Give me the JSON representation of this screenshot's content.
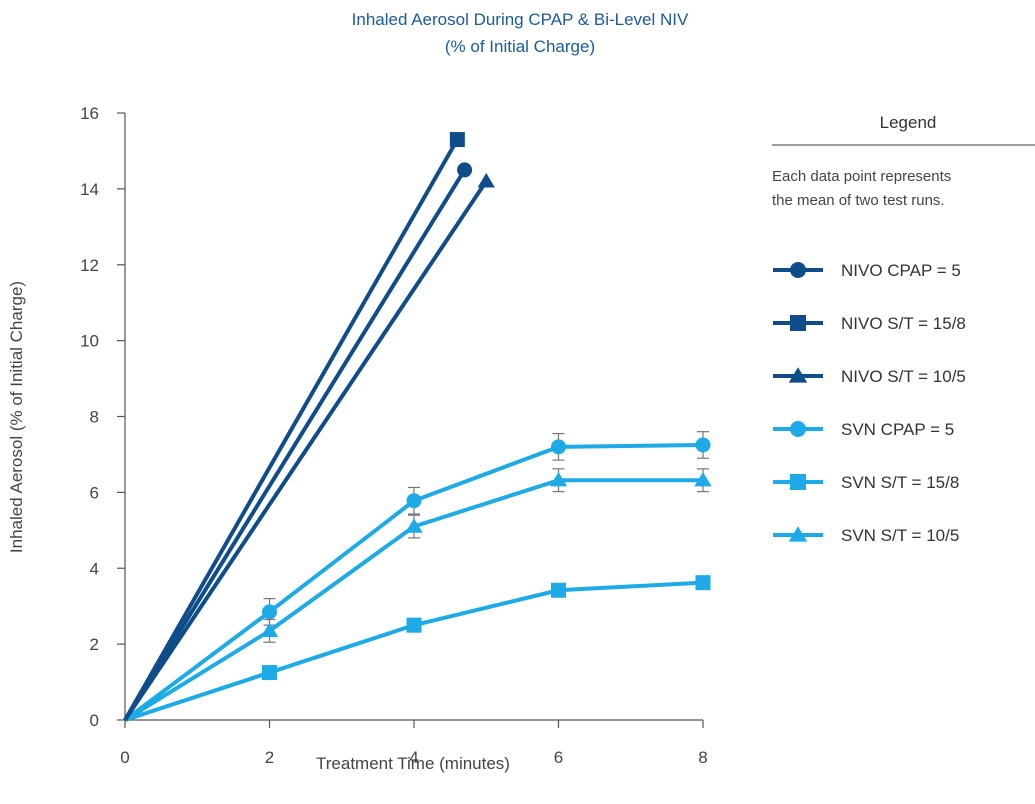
{
  "chart_data": {
    "type": "line",
    "title": "Inhaled Aerosol During CPAP & Bi-Level NIV",
    "subtitle": "(% of Initial Charge)",
    "xlabel": "Treatment Time (minutes)",
    "ylabel": "Inhaled Aerosol (% of Initial Charge)",
    "xlim": [
      0,
      8
    ],
    "ylim": [
      0,
      16
    ],
    "x_ticks": [
      "0",
      "2",
      "4",
      "6",
      "8"
    ],
    "y_ticks": [
      "0",
      "2",
      "4",
      "6",
      "8",
      "10",
      "12",
      "14",
      "16"
    ],
    "grid": false,
    "legend_position": "right",
    "legend_title": "Legend",
    "legend_note": [
      "Each data point represents",
      "the mean of two test runs."
    ],
    "series": [
      {
        "name": "NIVO CPAP = 5",
        "color": "#0f4c8a",
        "marker": "circle",
        "points": [
          [
            0,
            0
          ],
          [
            4.7,
            14.5
          ]
        ]
      },
      {
        "name": "NIVO S/T = 15/8",
        "color": "#0f4c8a",
        "marker": "square",
        "points": [
          [
            0,
            0
          ],
          [
            4.6,
            15.3
          ]
        ]
      },
      {
        "name": "NIVO S/T = 10/5",
        "color": "#0f4c8a",
        "marker": "triangle",
        "points": [
          [
            0,
            0
          ],
          [
            5.0,
            14.2
          ]
        ]
      },
      {
        "name": "SVN CPAP = 5",
        "color": "#1eaae6",
        "marker": "circle",
        "points": [
          [
            0,
            0
          ],
          [
            2,
            2.85
          ],
          [
            4,
            5.78
          ],
          [
            6,
            7.2
          ],
          [
            8,
            7.25
          ]
        ],
        "errors": [
          0.35,
          0.35,
          0.35,
          0.35,
          0.35
        ]
      },
      {
        "name": "SVN S/T = 15/8",
        "color": "#1eaae6",
        "marker": "square",
        "points": [
          [
            0,
            0
          ],
          [
            2,
            1.25
          ],
          [
            4,
            2.5
          ],
          [
            6,
            3.42
          ],
          [
            8,
            3.62
          ]
        ]
      },
      {
        "name": "SVN S/T = 10/5",
        "color": "#1eaae6",
        "marker": "triangle",
        "points": [
          [
            0,
            0
          ],
          [
            2,
            2.35
          ],
          [
            4,
            5.1
          ],
          [
            6,
            6.32
          ],
          [
            8,
            6.32
          ]
        ],
        "errors": [
          0.3,
          0.3,
          0.3,
          0.3,
          0.3
        ]
      }
    ]
  }
}
